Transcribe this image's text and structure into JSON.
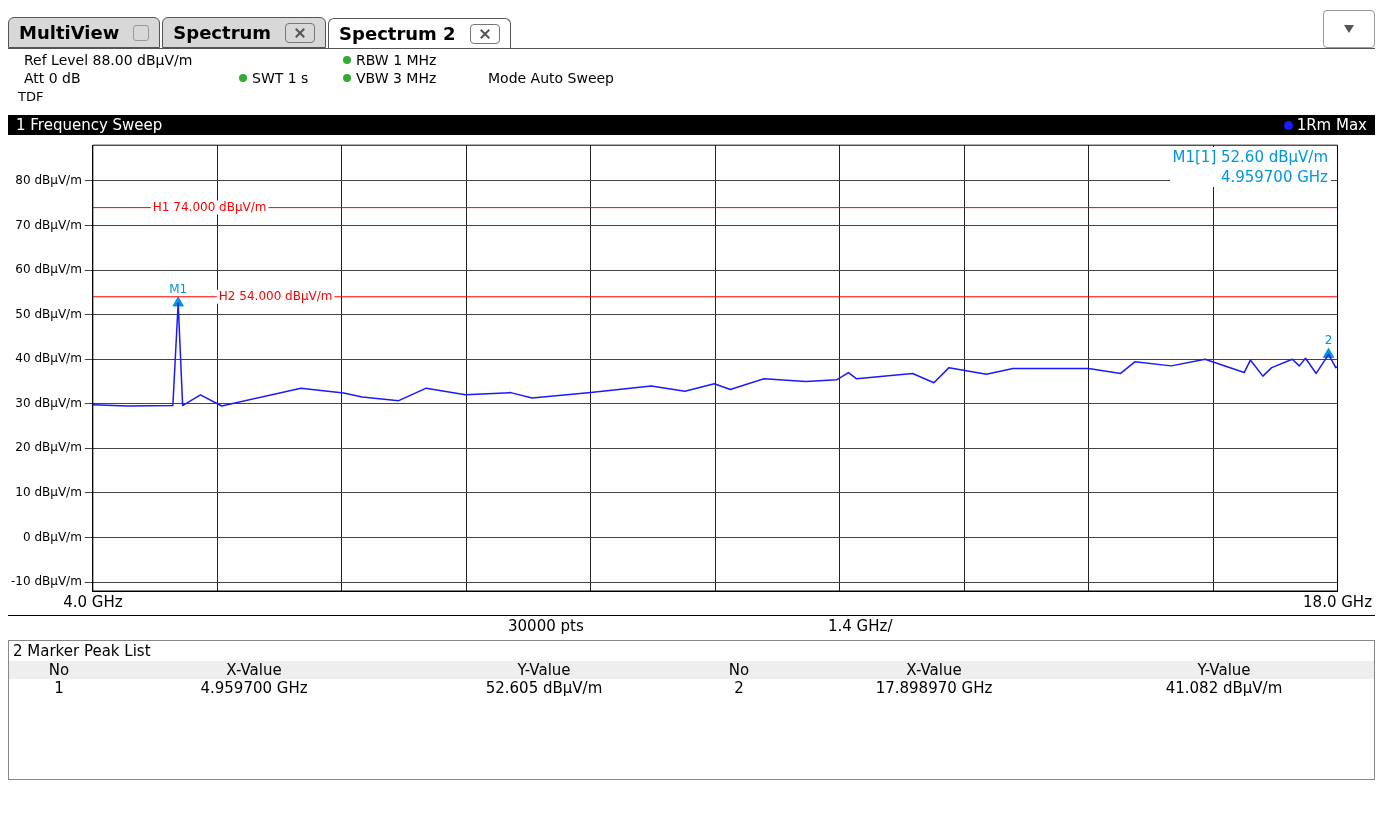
{
  "chart_data": {
    "type": "line",
    "title": "1 Frequency Sweep",
    "legend": "top right",
    "grid": true,
    "xlim": [
      4,
      18
    ],
    "xticks": [
      {
        "value": 4,
        "label": "4.0 GHz"
      },
      {
        "value": 5.4,
        "label": null
      },
      {
        "value": 6.8,
        "label": null
      },
      {
        "value": 8.2,
        "label": null
      },
      {
        "value": 9.6,
        "label": null
      },
      {
        "value": 11,
        "label": null
      },
      {
        "value": 12.4,
        "label": null
      },
      {
        "value": 13.8,
        "label": null
      },
      {
        "value": 15.2,
        "label": null
      },
      {
        "value": 16.6,
        "label": null
      },
      {
        "value": 18,
        "label": "18.0 GHz"
      }
    ],
    "ylim": [
      -12,
      88
    ],
    "yticks": [
      {
        "value": -10,
        "label": "-10 dBµV/m"
      },
      {
        "value": 0,
        "label": "0 dBµV/m"
      },
      {
        "value": 10,
        "label": "10 dBµV/m"
      },
      {
        "value": 20,
        "label": "20 dBµV/m"
      },
      {
        "value": 30,
        "label": "30 dBµV/m"
      },
      {
        "value": 40,
        "label": "40 dBµV/m"
      },
      {
        "value": 50,
        "label": "50 dBµV/m"
      },
      {
        "value": 60,
        "label": "60 dBµV/m"
      },
      {
        "value": 70,
        "label": "70 dBµV/m"
      },
      {
        "value": 80,
        "label": "80 dBµV/m"
      }
    ],
    "series": [
      {
        "name": "1Rm Max",
        "type": "line",
        "color": "#1a1aff",
        "marker": "none",
        "x": [
          4.0,
          4.39,
          4.9,
          4.9597,
          5.01,
          5.21,
          5.45,
          6.34,
          6.82,
          7.03,
          7.44,
          7.75,
          8.19,
          8.7,
          8.94,
          9.6,
          10.28,
          10.66,
          10.99,
          11.17,
          11.55,
          12.02,
          12.37,
          12.5,
          12.59,
          13.22,
          13.46,
          13.63,
          14.05,
          14.35,
          15.2,
          15.56,
          15.72,
          16.13,
          16.51,
          16.95,
          17.02,
          17.16,
          17.26,
          17.49,
          17.57,
          17.64,
          17.76,
          17.899,
          17.98,
          18.0
        ],
        "values": [
          29.8,
          29.5,
          29.6,
          52.6,
          29.6,
          32,
          29.5,
          33.5,
          32.4,
          31.5,
          30.7,
          33.5,
          32,
          32.5,
          31.3,
          32.5,
          34,
          32.8,
          34.5,
          33.2,
          35.6,
          35,
          35.4,
          37,
          35.6,
          36.8,
          34.7,
          38.1,
          36.6,
          37.9,
          37.9,
          36.8,
          39.4,
          38.5,
          40,
          37,
          39.8,
          36.2,
          38.1,
          40,
          38.5,
          40.2,
          36.8,
          41.08,
          38.1,
          38.3
        ]
      },
      {
        "type": "scatter",
        "color": "#0096dc",
        "marker": "triangle",
        "x": [
          4.9597,
          17.89897
        ],
        "values": [
          52.605,
          41.082
        ]
      }
    ],
    "ref_lines": [
      {
        "axis": "y",
        "value": 74,
        "label": "H1 74.000 dBµV/m",
        "color": "#ff0000"
      },
      {
        "axis": "y",
        "value": 54,
        "label": "H2 54.000 dBµV/m",
        "color": "#ff0000"
      }
    ],
    "annotations": [
      "MultiView",
      "Spectrum",
      "Spectrum 2",
      "Ref Level 88.00 dBµV/m",
      "Att 0 dB",
      "SWT 1 s",
      "RBW 1 MHz",
      "VBW 3 MHz",
      "Mode Auto Sweep",
      "TDF",
      "M1[1] 52.60 dBµV/m",
      "4.959700 GHz",
      "30000 pts",
      "1.4 GHz/",
      "2 Marker Peak List",
      "No",
      "X-Value",
      "Y-Value",
      "No",
      "X-Value",
      "Y-Value",
      "1",
      "4.959700 GHz",
      "52.605 dBµV/m",
      "2",
      "17.898970 GHz",
      "41.082 dBµV/m",
      {
        "text": "M1",
        "x": 4.9597,
        "y": 52.605
      },
      {
        "text": "2",
        "x": 17.89897,
        "y": 41.082
      }
    ]
  }
}
